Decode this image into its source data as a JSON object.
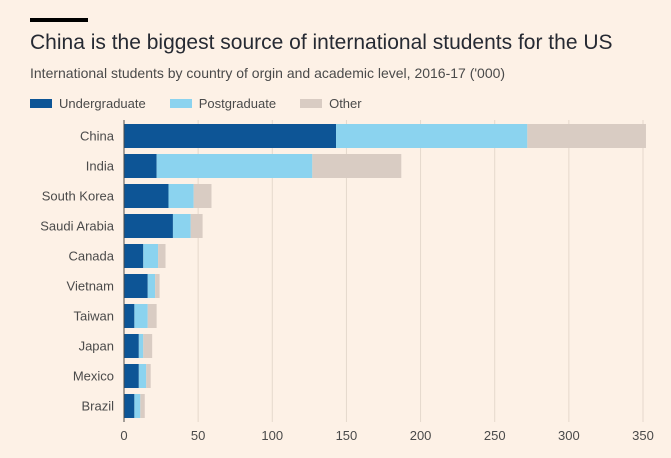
{
  "header": {
    "title": "China is the biggest source of international students for the US",
    "subtitle": "International students by country of orgin and academic level, 2016-17 ('000)"
  },
  "colors": {
    "background": "#fdf1e6",
    "undergraduate": "#0d5596",
    "postgraduate": "#8bd3ef",
    "other": "#d9ccc3",
    "gridline": "#e5d8cc",
    "rule": "#000000"
  },
  "chart_data": {
    "type": "bar",
    "orientation": "horizontal",
    "stacked": true,
    "title": "China is the biggest source of international students for the US",
    "subtitle": "International students by country of orgin and academic level, 2016-17 ('000)",
    "categories": [
      "China",
      "India",
      "South Korea",
      "Saudi Arabia",
      "Canada",
      "Vietnam",
      "Taiwan",
      "Japan",
      "Mexico",
      "Brazil"
    ],
    "series": [
      {
        "name": "Undergraduate",
        "values": [
          143,
          22,
          30,
          33,
          13,
          16,
          7,
          10,
          10,
          7
        ]
      },
      {
        "name": "Postgraduate",
        "values": [
          129,
          105,
          17,
          12,
          10,
          5,
          9,
          3,
          5,
          4
        ]
      },
      {
        "name": "Other",
        "values": [
          80,
          60,
          12,
          8,
          5,
          3,
          6,
          6,
          3,
          3
        ]
      }
    ],
    "xlim": [
      0,
      350
    ],
    "xticks": [
      0,
      50,
      100,
      150,
      200,
      250,
      300,
      350
    ],
    "grid": true,
    "legend": "top-left"
  }
}
